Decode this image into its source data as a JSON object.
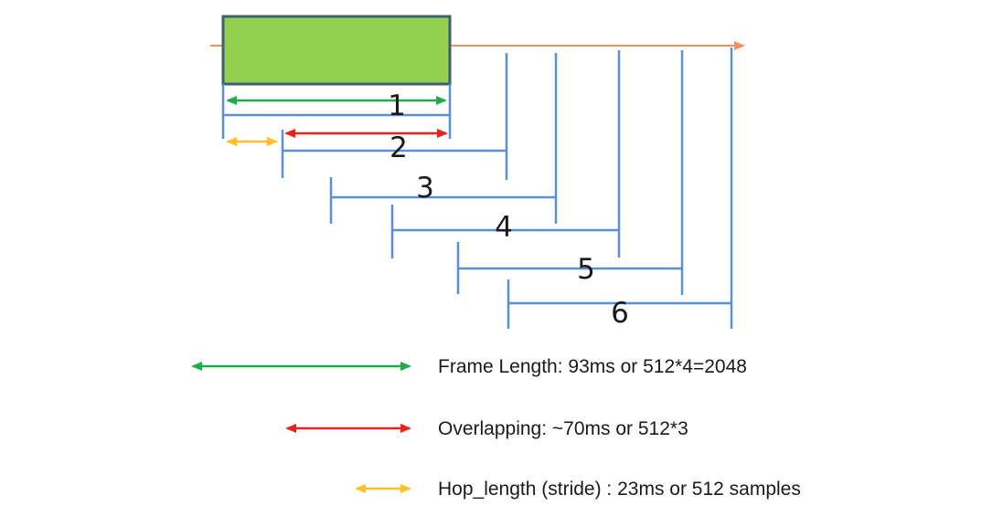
{
  "colors": {
    "frame_line": "#5b8fd6",
    "timeline": "#f0915a",
    "window_fill": "#92d050",
    "window_border": "#3d5e73",
    "frame_length": "#1fab4a",
    "overlapping": "#e8221c",
    "hop_length": "#ffc02a"
  },
  "frames": {
    "labels": [
      "1",
      "2",
      "3",
      "4",
      "5",
      "6"
    ]
  },
  "legend": {
    "frame_length": "Frame Length: 93ms or 512*4=2048",
    "overlapping": "Overlapping: ~70ms or 512*3",
    "hop_length": "Hop_length (stride) : 23ms or 512 samples"
  }
}
